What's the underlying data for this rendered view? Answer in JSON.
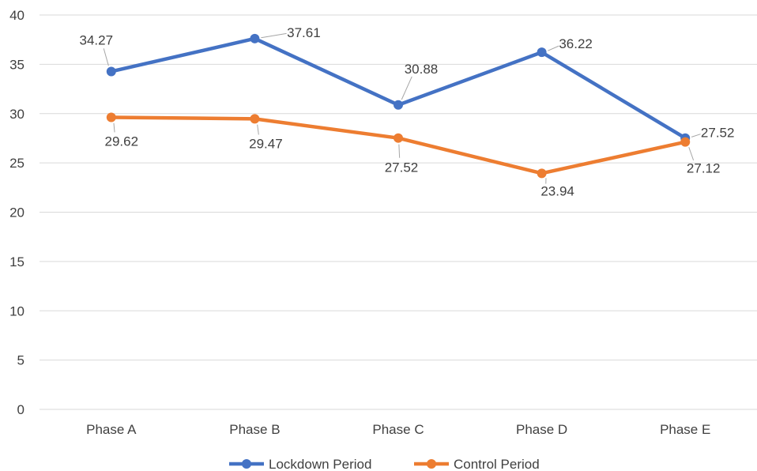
{
  "chart_data": {
    "type": "line",
    "categories": [
      "Phase A",
      "Phase B",
      "Phase C",
      "Phase D",
      "Phase E"
    ],
    "series": [
      {
        "name": "Lockdown Period",
        "values": [
          34.27,
          37.61,
          30.88,
          36.22,
          27.52
        ],
        "color": "#4472C4"
      },
      {
        "name": "Control Period",
        "values": [
          29.62,
          29.47,
          27.52,
          23.94,
          27.12
        ],
        "color": "#ED7D31"
      }
    ],
    "ylim": [
      0,
      40
    ],
    "yticks": [
      0,
      5,
      10,
      15,
      20,
      25,
      30,
      35,
      40
    ],
    "grid": true,
    "legend": "bottom",
    "title": "",
    "xlabel": "",
    "ylabel": ""
  }
}
